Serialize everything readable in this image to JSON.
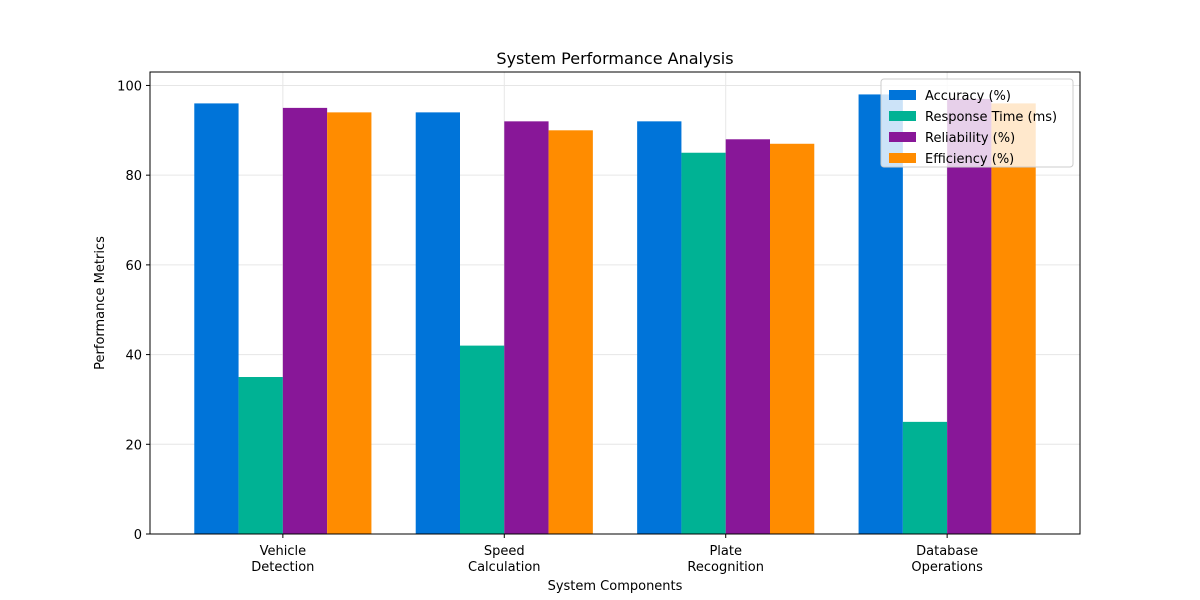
{
  "chart_data": {
    "type": "bar",
    "title": "System Performance Analysis",
    "xlabel": "System Components",
    "ylabel": "Performance Metrics",
    "categories": [
      [
        "Vehicle",
        "Detection"
      ],
      [
        "Speed",
        "Calculation"
      ],
      [
        "Plate",
        "Recognition"
      ],
      [
        "Database",
        "Operations"
      ]
    ],
    "series": [
      {
        "name": "Accuracy (%)",
        "color": "#0074D9",
        "values": [
          96,
          94,
          92,
          98
        ]
      },
      {
        "name": "Response Time (ms)",
        "color": "#00B294",
        "values": [
          35,
          42,
          85,
          25
        ]
      },
      {
        "name": "Reliability (%)",
        "color": "#881798",
        "values": [
          95,
          92,
          88,
          97
        ]
      },
      {
        "name": "Efficiency (%)",
        "color": "#FF8C00",
        "values": [
          94,
          90,
          87,
          96
        ]
      }
    ],
    "ylim": [
      0,
      103
    ],
    "yticks": [
      0,
      20,
      40,
      60,
      80,
      100
    ],
    "grid": true,
    "legend_position": "top-right"
  }
}
